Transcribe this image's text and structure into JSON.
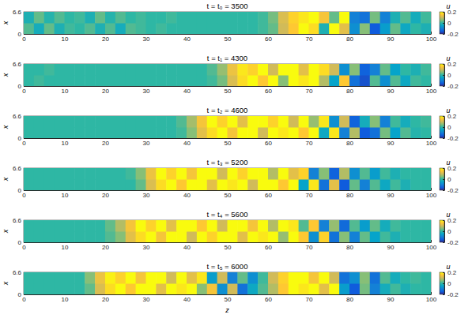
{
  "chart_data": [
    {
      "type": "heatmap",
      "title": "t = t₀ = 3500",
      "ylabel": "x",
      "xlim": [
        0,
        100
      ],
      "xticks": [
        0,
        10,
        20,
        30,
        40,
        50,
        60,
        70,
        80,
        90,
        100
      ],
      "ylim": [
        0,
        6.6
      ],
      "yticks": [
        0,
        6.6
      ],
      "x_bins": [
        0,
        2.5,
        5,
        7.5,
        10,
        12.5,
        15,
        17.5,
        20,
        22.5,
        25,
        27.5,
        30,
        32.5,
        35,
        37.5,
        40,
        42.5,
        45,
        47.5,
        50,
        52.5,
        55,
        57.5,
        60,
        62.5,
        65,
        67.5,
        70,
        72.5,
        75,
        77.5,
        80,
        82.5,
        85,
        87.5,
        90,
        92.5,
        95,
        97.5,
        100
      ],
      "y_bins": [
        0,
        3.3,
        6.6
      ],
      "cells": [
        [
          0.02,
          -0.03,
          0.03,
          -0.02,
          0.01,
          0,
          0.02,
          -0.02,
          0.02,
          -0.03,
          0.02,
          0.01,
          0,
          0.01,
          0,
          0,
          0,
          0,
          0,
          0,
          0,
          0,
          0,
          0.01,
          0.03,
          0.1,
          0.15,
          0.2,
          0.17,
          -0.02,
          0.2,
          0.12,
          -0.08,
          0.05,
          -0.15,
          -0.06,
          0.03,
          -0.04,
          0,
          -0.02
        ],
        [
          -0.02,
          0.03,
          -0.01,
          0.02,
          0,
          0.01,
          -0.02,
          0.03,
          -0.01,
          0.02,
          0,
          0.01,
          0,
          0,
          0.01,
          0,
          0,
          0,
          0,
          0,
          0,
          0,
          0,
          0.01,
          0.04,
          0.11,
          0.16,
          0.18,
          0.2,
          0.14,
          0.03,
          0.2,
          -0.1,
          -0.12,
          0.04,
          -0.1,
          -0.02,
          0.02,
          -0.03,
          0.01
        ]
      ],
      "colorbar": {
        "label": "u",
        "lim": [
          -0.2,
          0.2
        ],
        "ticks": [
          -0.2,
          0,
          0.2
        ]
      }
    },
    {
      "type": "heatmap",
      "title": "t = t₁ = 4300",
      "ylabel": "x",
      "xlim": [
        0,
        100
      ],
      "xticks": [
        0,
        10,
        20,
        30,
        40,
        50,
        60,
        70,
        80,
        90,
        100
      ],
      "ylim": [
        0,
        6.6
      ],
      "yticks": [
        0,
        6.6
      ],
      "x_bins": [
        0,
        2.5,
        5,
        7.5,
        10,
        12.5,
        15,
        17.5,
        20,
        22.5,
        25,
        27.5,
        30,
        32.5,
        35,
        37.5,
        40,
        42.5,
        45,
        47.5,
        50,
        52.5,
        55,
        57.5,
        60,
        62.5,
        65,
        67.5,
        70,
        72.5,
        75,
        77.5,
        80,
        82.5,
        85,
        87.5,
        90,
        92.5,
        95,
        97.5,
        100
      ],
      "y_bins": [
        0,
        3.3,
        6.6
      ],
      "cells": [
        [
          0,
          0.01,
          0,
          0,
          0,
          0,
          0,
          0,
          0,
          0,
          0,
          0,
          0,
          0,
          0,
          0,
          0,
          0,
          0.01,
          0.04,
          0.11,
          0.17,
          0.2,
          0.15,
          0.2,
          0.05,
          0.2,
          0.18,
          0.2,
          0.08,
          -0.05,
          0.15,
          -0.12,
          -0.16,
          0.02,
          -0.08,
          0.02,
          -0.04,
          0.01,
          0
        ],
        [
          0,
          0,
          0.01,
          0,
          0,
          0,
          0,
          0,
          0,
          0,
          0,
          0,
          0,
          0,
          0,
          0,
          0,
          0,
          0.02,
          0.06,
          0.13,
          0.18,
          0.16,
          0.2,
          0.1,
          0.2,
          0.2,
          0.12,
          0.2,
          0.17,
          0.1,
          -0.08,
          0.05,
          -0.14,
          -0.1,
          0.03,
          -0.05,
          0,
          -0.02,
          0.01
        ]
      ],
      "colorbar": {
        "label": "u",
        "lim": [
          -0.2,
          0.2
        ],
        "ticks": [
          -0.2,
          0,
          0.2
        ]
      }
    },
    {
      "type": "heatmap",
      "title": "t = t₂ = 4600",
      "ylabel": "x",
      "xlim": [
        0,
        100
      ],
      "xticks": [
        0,
        10,
        20,
        30,
        40,
        50,
        60,
        70,
        80,
        90,
        100
      ],
      "ylim": [
        0,
        6.6
      ],
      "yticks": [
        0,
        6.6
      ],
      "x_bins": [
        0,
        2.5,
        5,
        7.5,
        10,
        12.5,
        15,
        17.5,
        20,
        22.5,
        25,
        27.5,
        30,
        32.5,
        35,
        37.5,
        40,
        42.5,
        45,
        47.5,
        50,
        52.5,
        55,
        57.5,
        60,
        62.5,
        65,
        67.5,
        70,
        72.5,
        75,
        77.5,
        80,
        82.5,
        85,
        87.5,
        90,
        92.5,
        95,
        97.5,
        100
      ],
      "y_bins": [
        0,
        3.3,
        6.6
      ],
      "cells": [
        [
          0,
          0,
          0,
          0,
          0,
          0,
          0,
          0,
          0,
          0,
          0,
          0,
          0,
          0,
          0,
          0.01,
          0.05,
          0.12,
          0.17,
          0.2,
          0.14,
          0.2,
          0.2,
          0.1,
          0.2,
          0.18,
          0.2,
          0.15,
          0.2,
          -0.04,
          0.18,
          -0.1,
          0.08,
          -0.15,
          -0.12,
          0.04,
          -0.05,
          0.02,
          -0.01,
          0
        ],
        [
          0,
          0,
          0,
          0,
          0,
          0,
          0,
          0,
          0,
          0,
          0,
          0,
          0,
          0,
          0,
          0.02,
          0.07,
          0.14,
          0.2,
          0.16,
          0.2,
          0.12,
          0.2,
          0.2,
          0.16,
          0.2,
          0.1,
          0.2,
          0.06,
          0.18,
          -0.08,
          0.1,
          -0.14,
          -0.03,
          0.05,
          -0.1,
          0.01,
          -0.03,
          0,
          0.01
        ]
      ],
      "colorbar": {
        "label": "u",
        "lim": [
          -0.2,
          0.2
        ],
        "ticks": [
          -0.2,
          0,
          0.2
        ]
      }
    },
    {
      "type": "heatmap",
      "title": "t = t₃ = 5200",
      "ylabel": "x",
      "xlim": [
        0,
        100
      ],
      "xticks": [
        0,
        10,
        20,
        30,
        40,
        50,
        60,
        70,
        80,
        90,
        100
      ],
      "ylim": [
        0,
        6.6
      ],
      "yticks": [
        0,
        6.6
      ],
      "x_bins": [
        0,
        2.5,
        5,
        7.5,
        10,
        12.5,
        15,
        17.5,
        20,
        22.5,
        25,
        27.5,
        30,
        32.5,
        35,
        37.5,
        40,
        42.5,
        45,
        47.5,
        50,
        52.5,
        55,
        57.5,
        60,
        62.5,
        65,
        67.5,
        70,
        72.5,
        75,
        77.5,
        80,
        82.5,
        85,
        87.5,
        90,
        92.5,
        95,
        97.5,
        100
      ],
      "y_bins": [
        0,
        3.3,
        6.6
      ],
      "cells": [
        [
          0,
          0,
          0,
          0,
          0,
          0,
          0,
          0,
          0,
          0,
          0,
          0.03,
          0.11,
          0.17,
          0.2,
          0.15,
          0.2,
          0.2,
          0.12,
          0.2,
          0.18,
          0.2,
          0.1,
          0.2,
          0.2,
          0.15,
          0.2,
          -0.05,
          0.18,
          -0.12,
          0.12,
          -0.15,
          0.03,
          -0.1,
          0.02,
          -0.04,
          0.01,
          -0.02,
          0,
          0
        ],
        [
          0,
          0,
          0,
          0,
          0,
          0,
          0,
          0,
          0,
          0,
          0.01,
          0.05,
          0.13,
          0.2,
          0.16,
          0.2,
          0.14,
          0.2,
          0.2,
          0.1,
          0.2,
          0.16,
          0.2,
          0.2,
          0.08,
          0.2,
          0.12,
          0.16,
          -0.1,
          0.05,
          -0.14,
          0.08,
          -0.08,
          0.02,
          -0.06,
          0.01,
          -0.02,
          0,
          0,
          0
        ]
      ],
      "colorbar": {
        "label": "u",
        "lim": [
          -0.2,
          0.2
        ],
        "ticks": [
          -0.2,
          0,
          0.2
        ]
      }
    },
    {
      "type": "heatmap",
      "title": "t = t₄ = 5600",
      "ylabel": "x",
      "xlim": [
        0,
        100
      ],
      "xticks": [
        0,
        10,
        20,
        30,
        40,
        50,
        60,
        70,
        80,
        90,
        100
      ],
      "ylim": [
        0,
        6.6
      ],
      "yticks": [
        0,
        6.6
      ],
      "x_bins": [
        0,
        2.5,
        5,
        7.5,
        10,
        12.5,
        15,
        17.5,
        20,
        22.5,
        25,
        27.5,
        30,
        32.5,
        35,
        37.5,
        40,
        42.5,
        45,
        47.5,
        50,
        52.5,
        55,
        57.5,
        60,
        62.5,
        65,
        67.5,
        70,
        72.5,
        75,
        77.5,
        80,
        82.5,
        85,
        87.5,
        90,
        92.5,
        95,
        97.5,
        100
      ],
      "y_bins": [
        0,
        3.3,
        6.6
      ],
      "cells": [
        [
          0,
          0,
          0,
          0,
          0,
          0,
          0,
          0,
          0.02,
          0.05,
          0.12,
          0.17,
          0.2,
          0.14,
          0.2,
          0.2,
          0.1,
          0.2,
          0.16,
          0.2,
          0.2,
          0.12,
          0.2,
          0.18,
          0.2,
          0.06,
          0.2,
          0.15,
          -0.08,
          0.16,
          -0.12,
          0.05,
          -0.1,
          0.03,
          -0.05,
          0.01,
          -0.02,
          0,
          0,
          0
        ],
        [
          0,
          0,
          0,
          0,
          0,
          0,
          0,
          0,
          0.03,
          0.08,
          0.14,
          0.2,
          0.16,
          0.2,
          0.12,
          0.2,
          0.2,
          0.15,
          0.2,
          0.1,
          0.2,
          0.2,
          0.14,
          0.2,
          0.08,
          0.2,
          0.18,
          0.02,
          0.15,
          -0.1,
          0.06,
          -0.13,
          0.02,
          -0.06,
          0.03,
          -0.03,
          0.01,
          0,
          0,
          0
        ]
      ],
      "colorbar": {
        "label": "u",
        "lim": [
          -0.2,
          0.2
        ],
        "ticks": [
          -0.2,
          0,
          0.2
        ]
      }
    },
    {
      "type": "heatmap",
      "title": "t = t₅ = 6000",
      "xlabel": "z",
      "ylabel": "x",
      "xlim": [
        0,
        100
      ],
      "xticks": [
        0,
        10,
        20,
        30,
        40,
        50,
        60,
        70,
        80,
        90,
        100
      ],
      "ylim": [
        0,
        6.6
      ],
      "yticks": [
        0,
        6.6
      ],
      "x_bins": [
        0,
        2.5,
        5,
        7.5,
        10,
        12.5,
        15,
        17.5,
        20,
        22.5,
        25,
        27.5,
        30,
        32.5,
        35,
        37.5,
        40,
        42.5,
        45,
        47.5,
        50,
        52.5,
        55,
        57.5,
        60,
        62.5,
        65,
        67.5,
        70,
        72.5,
        75,
        77.5,
        80,
        82.5,
        85,
        87.5,
        90,
        92.5,
        95,
        97.5,
        100
      ],
      "y_bins": [
        0,
        3.3,
        6.6
      ],
      "cells": [
        [
          0,
          0,
          0,
          0,
          0,
          0,
          0.03,
          0.11,
          0.17,
          0.2,
          0.15,
          0.2,
          0.2,
          0.12,
          0.2,
          0.18,
          0.2,
          0.05,
          0.14,
          -0.08,
          0.1,
          -0.12,
          -0.04,
          0.02,
          0.08,
          0.15,
          0.2,
          0.18,
          0.2,
          0.12,
          0.2,
          -0.06,
          -0.15,
          0.04,
          -0.1,
          -0.03,
          0.01,
          -0.02,
          0,
          0
        ],
        [
          0,
          0,
          0,
          0,
          0,
          0,
          0.05,
          0.13,
          0.19,
          0.16,
          0.2,
          0.14,
          0.2,
          0.2,
          0.1,
          0.2,
          0.12,
          0.18,
          -0.06,
          0.1,
          -0.1,
          0.03,
          -0.08,
          0.01,
          0.1,
          0.16,
          0.2,
          0.2,
          0.14,
          0.2,
          0.1,
          -0.12,
          -0.08,
          0.05,
          -0.12,
          0.02,
          -0.03,
          0,
          0.01,
          0
        ]
      ],
      "colorbar": {
        "label": "u",
        "lim": [
          -0.2,
          0.2
        ],
        "ticks": [
          -0.2,
          0,
          0.2
        ]
      }
    }
  ]
}
